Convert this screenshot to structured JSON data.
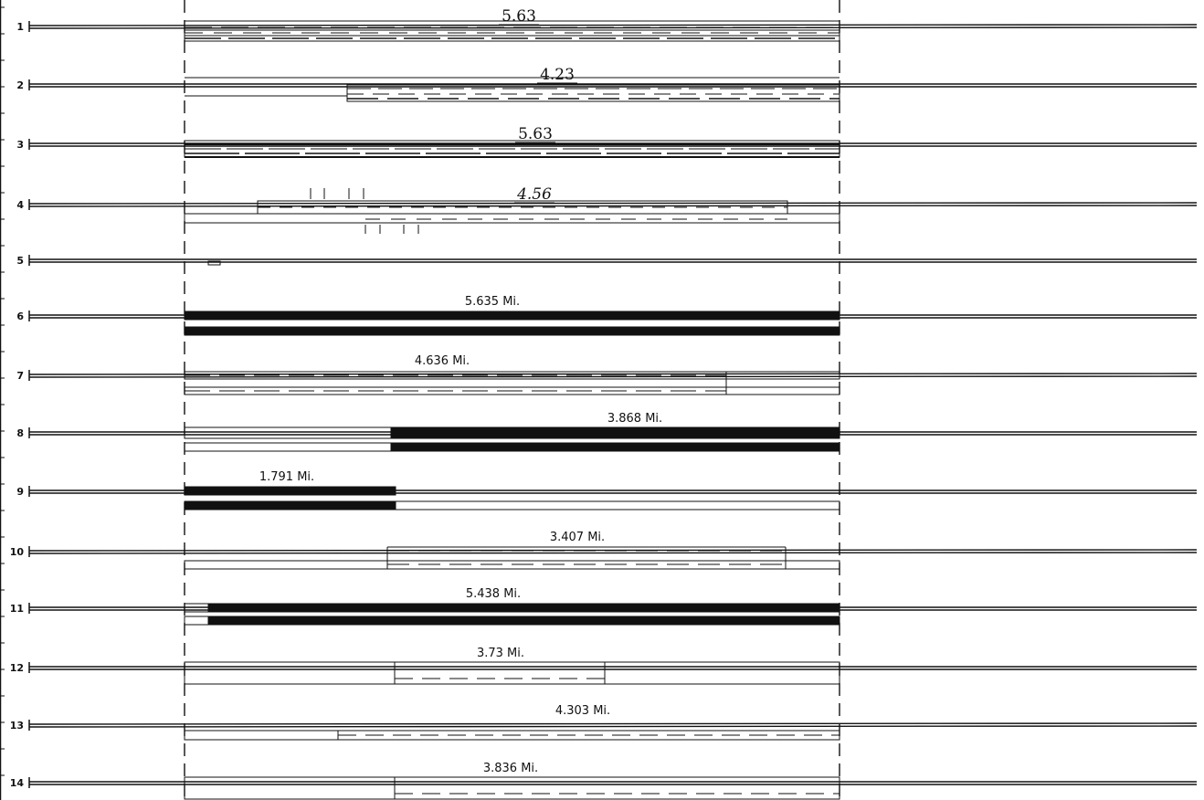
{
  "diagram": {
    "rows": [
      {
        "number": "1",
        "label": "5.63",
        "label_style": "hand"
      },
      {
        "number": "2",
        "label": "4.23",
        "label_style": "hand"
      },
      {
        "number": "3",
        "label": "5.63",
        "label_style": "hand"
      },
      {
        "number": "4",
        "label": "4.56",
        "label_style": "hand-italic"
      },
      {
        "number": "5",
        "label": "",
        "label_style": "none"
      },
      {
        "number": "6",
        "label": "5.635 Mi.",
        "label_style": "print"
      },
      {
        "number": "7",
        "label": "4.636 Mi.",
        "label_style": "print"
      },
      {
        "number": "8",
        "label": "3.868 Mi.",
        "label_style": "print"
      },
      {
        "number": "9",
        "label": "1.791 Mi.",
        "label_style": "print"
      },
      {
        "number": "10",
        "label": "3.407 Mi.",
        "label_style": "print"
      },
      {
        "number": "11",
        "label": "5.438 Mi.",
        "label_style": "print"
      },
      {
        "number": "12",
        "label": "3.73 Mi.",
        "label_style": "print"
      },
      {
        "number": "13",
        "label": "4.303 Mi.",
        "label_style": "print"
      },
      {
        "number": "14",
        "label": "3.836 Mi.",
        "label_style": "print"
      }
    ]
  }
}
